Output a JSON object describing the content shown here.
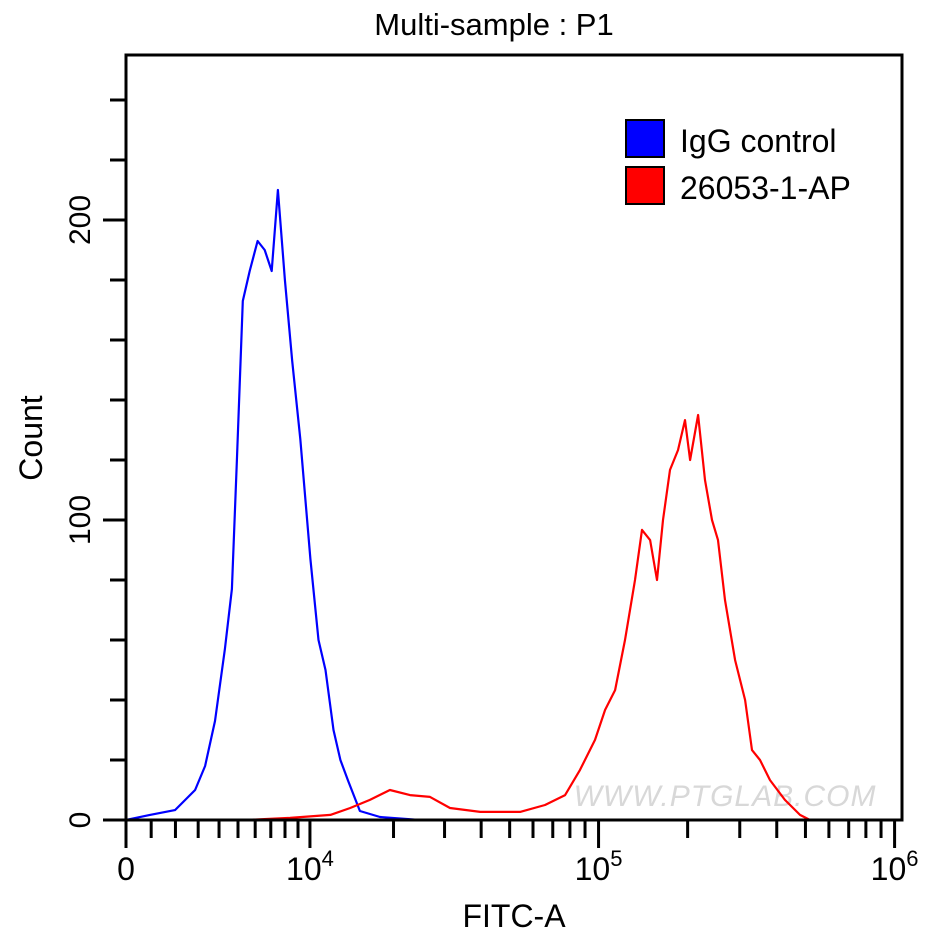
{
  "chart_data": {
    "type": "line",
    "title": "Multi-sample : P1",
    "xlabel": "FITC-A",
    "ylabel": "Count",
    "x_scale": "biexponential",
    "xlim": [
      0,
      1000000
    ],
    "ylim": [
      0,
      253
    ],
    "x_ticks": [
      {
        "value": 0,
        "base": "0",
        "exp": ""
      },
      {
        "value": 10000,
        "base": "10",
        "exp": "4"
      },
      {
        "value": 100000,
        "base": "10",
        "exp": "5"
      },
      {
        "value": 1000000,
        "base": "10",
        "exp": "6"
      }
    ],
    "y_ticks": [
      0,
      100,
      200
    ],
    "y_minor_step": 20,
    "grid": false,
    "legend_position": "top-right",
    "watermark": "WWW.PTGLAB.COM",
    "series": [
      {
        "name": "IgG control",
        "color": "#0000ff",
        "points": [
          [
            0,
            0
          ],
          [
            950,
            1.7
          ],
          [
            1980,
            3.3
          ],
          [
            2860,
            10
          ],
          [
            3320,
            18
          ],
          [
            3800,
            33
          ],
          [
            4300,
            57
          ],
          [
            4670,
            77
          ],
          [
            4940,
            120
          ],
          [
            5270,
            173
          ],
          [
            5670,
            183
          ],
          [
            6150,
            193
          ],
          [
            6600,
            190
          ],
          [
            7060,
            183
          ],
          [
            7490,
            210
          ],
          [
            7990,
            180
          ],
          [
            8540,
            153
          ],
          [
            9190,
            127
          ],
          [
            10040,
            87
          ],
          [
            10770,
            60
          ],
          [
            11430,
            50
          ],
          [
            12230,
            30
          ],
          [
            12960,
            20
          ],
          [
            13830,
            13
          ],
          [
            15230,
            3
          ],
          [
            17940,
            1
          ],
          [
            24700,
            0
          ]
        ]
      },
      {
        "name": "26053-1-AP",
        "color": "#ff0000",
        "points": [
          [
            5380,
            0
          ],
          [
            8380,
            0.7
          ],
          [
            11920,
            1.7
          ],
          [
            14060,
            4
          ],
          [
            16530,
            6.7
          ],
          [
            19430,
            10
          ],
          [
            22820,
            8.3
          ],
          [
            26750,
            7.7
          ],
          [
            31310,
            4
          ],
          [
            39690,
            2.7
          ],
          [
            54250,
            2.7
          ],
          [
            65880,
            5
          ],
          [
            77040,
            8.3
          ],
          [
            86530,
            16.7
          ],
          [
            97290,
            26.7
          ],
          [
            105200,
            36.7
          ],
          [
            113700,
            43.3
          ],
          [
            122900,
            60
          ],
          [
            132800,
            80
          ],
          [
            140200,
            96.7
          ],
          [
            149300,
            93.3
          ],
          [
            157600,
            80
          ],
          [
            165100,
            100
          ],
          [
            174400,
            116.7
          ],
          [
            185500,
            123.3
          ],
          [
            196000,
            133.3
          ],
          [
            203800,
            120
          ],
          [
            216900,
            135
          ],
          [
            228900,
            113.3
          ],
          [
            241800,
            100
          ],
          [
            253200,
            93.3
          ],
          [
            267500,
            73.3
          ],
          [
            289200,
            53.3
          ],
          [
            312600,
            40
          ],
          [
            330000,
            23.3
          ],
          [
            351200,
            20
          ],
          [
            379600,
            13.3
          ],
          [
            426300,
            6.7
          ],
          [
            479100,
            1.7
          ],
          [
            518200,
            0
          ]
        ]
      }
    ]
  }
}
